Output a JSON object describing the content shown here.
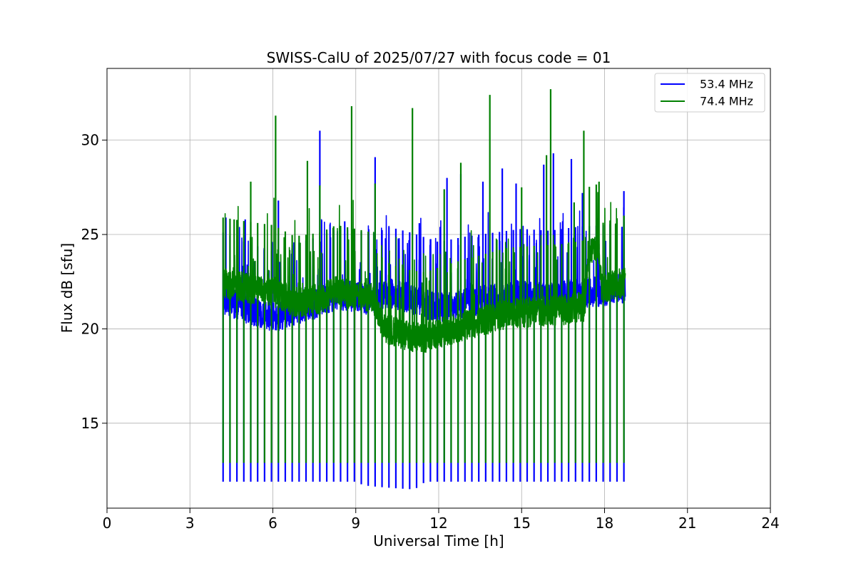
{
  "chart_data": {
    "type": "line",
    "title": "SWISS-CalU of 2025/07/27 with focus code = 01",
    "xlabel": "Universal Time [h]",
    "ylabel": "Flux dB [sfu]",
    "xlim": [
      0,
      24
    ],
    "ylim": [
      10.5,
      33.8
    ],
    "xticks": [
      0,
      3,
      6,
      9,
      12,
      15,
      18,
      21,
      24
    ],
    "yticks": [
      15,
      20,
      25,
      30
    ],
    "grid": true,
    "legend_position": "top-right",
    "calibration_interval_h": 0.25,
    "data_start_h": 4.2,
    "data_end_h": 18.75,
    "series": [
      {
        "name": "53.4 MHz",
        "color": "#0000ff",
        "baseline": [
          [
            4.2,
            21.6
          ],
          [
            5.0,
            21.1
          ],
          [
            6.0,
            20.6
          ],
          [
            6.8,
            21.0
          ],
          [
            7.7,
            21.4
          ],
          [
            8.3,
            21.8
          ],
          [
            9.0,
            21.7
          ],
          [
            9.6,
            21.5
          ],
          [
            10.2,
            21.9
          ],
          [
            11.0,
            21.6
          ],
          [
            12.0,
            21.1
          ],
          [
            13.0,
            21.4
          ],
          [
            14.0,
            21.6
          ],
          [
            15.0,
            21.8
          ],
          [
            16.0,
            21.7
          ],
          [
            17.0,
            21.9
          ],
          [
            18.0,
            22.0
          ],
          [
            18.75,
            22.2
          ]
        ],
        "calibration_low": [
          [
            4.2,
            11.9
          ],
          [
            9.0,
            11.9
          ],
          [
            9.3,
            11.7
          ],
          [
            10.0,
            11.6
          ],
          [
            11.0,
            11.5
          ],
          [
            11.3,
            11.6
          ],
          [
            11.5,
            11.9
          ],
          [
            18.75,
            11.9
          ]
        ],
        "peaks": [
          [
            4.3,
            25.9
          ],
          [
            5.0,
            25.8
          ],
          [
            6.2,
            26.8
          ],
          [
            7.7,
            30.5
          ],
          [
            8.6,
            25.7
          ],
          [
            9.7,
            29.1
          ],
          [
            11.3,
            25.6
          ],
          [
            12.3,
            28.0
          ],
          [
            12.8,
            28.2
          ],
          [
            13.6,
            27.8
          ],
          [
            14.3,
            28.5
          ],
          [
            14.8,
            27.7
          ],
          [
            15.8,
            28.7
          ],
          [
            16.15,
            29.3
          ],
          [
            16.8,
            29.0
          ],
          [
            17.2,
            27.2
          ],
          [
            18.7,
            27.3
          ]
        ]
      },
      {
        "name": "74.4 MHz",
        "color": "#008000",
        "baseline": [
          [
            4.2,
            22.4
          ],
          [
            5.0,
            22.2
          ],
          [
            6.0,
            22.0
          ],
          [
            6.8,
            21.4
          ],
          [
            7.7,
            21.6
          ],
          [
            8.3,
            22.0
          ],
          [
            9.0,
            21.8
          ],
          [
            9.6,
            21.6
          ],
          [
            10.0,
            20.1
          ],
          [
            10.5,
            19.8
          ],
          [
            11.0,
            19.6
          ],
          [
            11.5,
            19.5
          ],
          [
            12.5,
            20.0
          ],
          [
            13.5,
            20.4
          ],
          [
            14.5,
            20.8
          ],
          [
            15.5,
            20.9
          ],
          [
            16.5,
            21.0
          ],
          [
            17.3,
            21.2
          ],
          [
            17.4,
            24.0
          ],
          [
            17.8,
            24.2
          ],
          [
            17.9,
            22.1
          ],
          [
            18.75,
            22.5
          ]
        ],
        "calibration_low": [
          [
            4.2,
            12.9
          ],
          [
            18.75,
            12.9
          ]
        ],
        "peaks": [
          [
            4.6,
            25.8
          ],
          [
            5.2,
            27.8
          ],
          [
            6.1,
            31.3
          ],
          [
            7.25,
            28.9
          ],
          [
            7.7,
            27.6
          ],
          [
            8.85,
            31.8
          ],
          [
            9.7,
            27.7
          ],
          [
            11.05,
            31.7
          ],
          [
            12.2,
            27.4
          ],
          [
            12.8,
            28.8
          ],
          [
            13.85,
            32.4
          ],
          [
            15.0,
            27.5
          ],
          [
            15.9,
            29.2
          ],
          [
            16.05,
            32.7
          ],
          [
            16.9,
            26.7
          ],
          [
            17.25,
            30.5
          ],
          [
            17.8,
            27.8
          ],
          [
            18.7,
            26.0
          ]
        ]
      }
    ]
  }
}
